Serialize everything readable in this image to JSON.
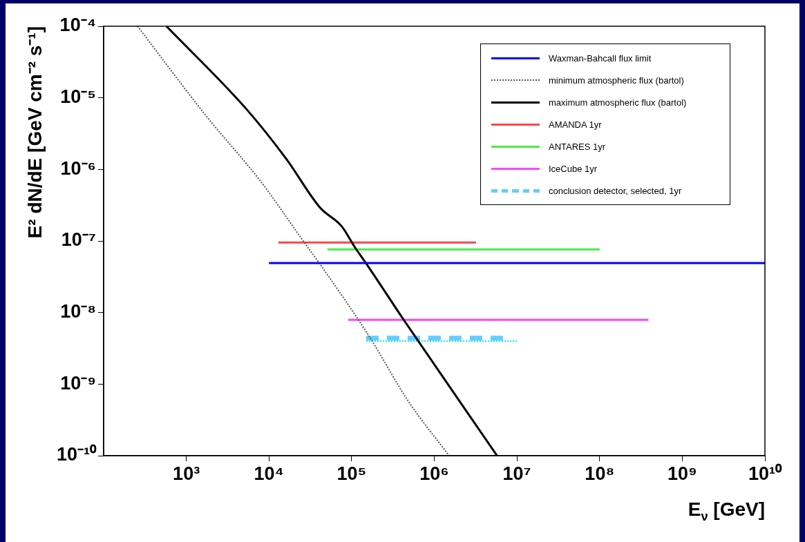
{
  "chart_data": {
    "type": "line",
    "xlabel": "E$_{ν}$ [GeV]",
    "ylabel": "E² dN/dE [GeV cm⁻² s⁻¹]",
    "log": "xy",
    "grid": false,
    "legend": "top right",
    "marker": "none",
    "xlim": [
      100,
      10000000000
    ],
    "ylim": [
      1e-10,
      0.0001
    ],
    "xticks": [
      {
        "value": 1000,
        "label": "10³"
      },
      {
        "value": 10000,
        "label": "10⁴"
      },
      {
        "value": 100000,
        "label": "10⁵"
      },
      {
        "value": 1000000,
        "label": "10⁶"
      },
      {
        "value": 10000000,
        "label": "10⁷"
      },
      {
        "value": 100000000,
        "label": "10⁸"
      },
      {
        "value": 1000000000,
        "label": "10⁹"
      },
      {
        "value": 10000000000,
        "label": "10¹⁰"
      }
    ],
    "yticks": [
      {
        "value": 1e-10,
        "label": "10⁻¹⁰"
      },
      {
        "value": 1e-09,
        "label": "10⁻⁹"
      },
      {
        "value": 1e-08,
        "label": "10⁻⁸"
      },
      {
        "value": 1e-07,
        "label": "10⁻⁷"
      },
      {
        "value": 1e-06,
        "label": "10⁻⁶"
      },
      {
        "value": 1e-05,
        "label": "10⁻⁵"
      },
      {
        "value": 0.0001,
        "label": "10⁻⁴"
      }
    ],
    "series": [
      {
        "name": "Waxman-Bahcall flux limit",
        "color": "#0000ff",
        "line_style": "solid",
        "x": [
          10000,
          10000000000
        ],
        "values": [
          4.9e-08,
          4.9e-08
        ]
      },
      {
        "name": "minimum atmospheric flux (bartol)",
        "color": "#555555",
        "line_style": "dotted",
        "x": [
          257,
          1780,
          7940,
          26300,
          41700,
          162000,
          479000,
          1510000
        ],
        "values": [
          0.0001,
          5.4e-06,
          6.8e-07,
          9.8e-08,
          4.7e-08,
          4.7e-09,
          5.9e-10,
          1e-10
        ]
      },
      {
        "name": "maximum atmospheric flux (bartol)",
        "color": "#000000",
        "line_style": "solid",
        "x": [
          575,
          5370,
          16200,
          41700,
          75900,
          110000,
          151000,
          427000,
          5750000
        ],
        "values": [
          0.0001,
          6.9e-06,
          1.4e-06,
          2.9e-07,
          1.6e-07,
          8.1e-08,
          4.8e-08,
          7.9e-09,
          1e-10
        ]
      },
      {
        "name": "AMANDA 1yr",
        "color": "#ff4444",
        "line_style": "solid",
        "x": [
          13000,
          3200000
        ],
        "values": [
          9.5e-08,
          9.5e-08
        ]
      },
      {
        "name": "ANTARES 1yr",
        "color": "#44ee44",
        "line_style": "solid",
        "x": [
          51000,
          100000000
        ],
        "values": [
          7.6e-08,
          7.6e-08
        ]
      },
      {
        "name": "IceCube 1yr",
        "color": "#ff44ff",
        "line_style": "solid",
        "x": [
          91000,
          390000000
        ],
        "values": [
          7.9e-09,
          7.9e-09
        ]
      },
      {
        "name": "conclusion detector, selected, 1yr",
        "color": "#66ccff",
        "line_style": "dashed",
        "x": [
          150000,
          7100000
        ],
        "values": [
          4.4e-09,
          4.4e-09
        ]
      },
      {
        "color": "#00eeff",
        "line_style": "dotted",
        "x": [
          150000,
          10000000
        ],
        "values": [
          4e-09,
          4e-09
        ]
      }
    ]
  }
}
